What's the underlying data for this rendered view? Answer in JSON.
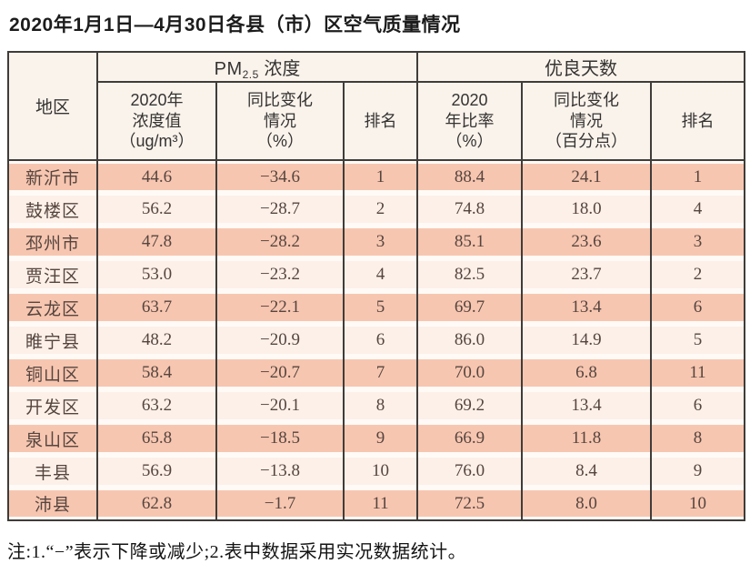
{
  "title": "2020年1月1日—4月30日各县（市）区空气质量情况",
  "note": "注:1.“−”表示下降或减少;2.表中数据采用实况数据统计。",
  "colors": {
    "row_salmon": "#f7c6b0",
    "row_light": "#fdf0e9",
    "header_bg": "#faf3ec",
    "border": "#3f3c39",
    "data_text": "#55453f"
  },
  "table": {
    "region_header": "地区",
    "group_pm25": {
      "prefix": "PM",
      "sub": "2.5",
      "suffix": " 浓度"
    },
    "group_good_days": "优良天数",
    "sub_headers": [
      {
        "id": "pm-value",
        "label": "2020年\n浓度值\n（ug/m³）"
      },
      {
        "id": "pm-change",
        "label": "同比变化\n情况\n（%）"
      },
      {
        "id": "pm-rank",
        "label": "排名"
      },
      {
        "id": "good-rate",
        "label": "2020\n年比率\n（%）"
      },
      {
        "id": "good-change",
        "label": "同比变化\n情况\n（百分点）"
      },
      {
        "id": "good-rank",
        "label": "排名"
      }
    ],
    "rows": [
      {
        "region": "新沂市",
        "pm_value": "44.6",
        "pm_change": "−34.6",
        "pm_rank": "1",
        "good_rate": "88.4",
        "good_change": "24.1",
        "good_rank": "1"
      },
      {
        "region": "鼓楼区",
        "pm_value": "56.2",
        "pm_change": "−28.7",
        "pm_rank": "2",
        "good_rate": "74.8",
        "good_change": "18.0",
        "good_rank": "4"
      },
      {
        "region": "邳州市",
        "pm_value": "47.8",
        "pm_change": "−28.2",
        "pm_rank": "3",
        "good_rate": "85.1",
        "good_change": "23.6",
        "good_rank": "3"
      },
      {
        "region": "贾汪区",
        "pm_value": "53.0",
        "pm_change": "−23.2",
        "pm_rank": "4",
        "good_rate": "82.5",
        "good_change": "23.7",
        "good_rank": "2"
      },
      {
        "region": "云龙区",
        "pm_value": "63.7",
        "pm_change": "−22.1",
        "pm_rank": "5",
        "good_rate": "69.7",
        "good_change": "13.4",
        "good_rank": "6"
      },
      {
        "region": "睢宁县",
        "pm_value": "48.2",
        "pm_change": "−20.9",
        "pm_rank": "6",
        "good_rate": "86.0",
        "good_change": "14.9",
        "good_rank": "5"
      },
      {
        "region": "铜山区",
        "pm_value": "58.4",
        "pm_change": "−20.7",
        "pm_rank": "7",
        "good_rate": "70.0",
        "good_change": "6.8",
        "good_rank": "11"
      },
      {
        "region": "开发区",
        "pm_value": "63.2",
        "pm_change": "−20.1",
        "pm_rank": "8",
        "good_rate": "69.2",
        "good_change": "13.4",
        "good_rank": "6"
      },
      {
        "region": "泉山区",
        "pm_value": "65.8",
        "pm_change": "−18.5",
        "pm_rank": "9",
        "good_rate": "66.9",
        "good_change": "11.8",
        "good_rank": "8"
      },
      {
        "region": "丰县",
        "pm_value": "56.9",
        "pm_change": "−13.8",
        "pm_rank": "10",
        "good_rate": "76.0",
        "good_change": "8.4",
        "good_rank": "9"
      },
      {
        "region": "沛县",
        "pm_value": "62.8",
        "pm_change": "−1.7",
        "pm_rank": "11",
        "good_rate": "72.5",
        "good_change": "8.0",
        "good_rank": "10"
      }
    ]
  }
}
